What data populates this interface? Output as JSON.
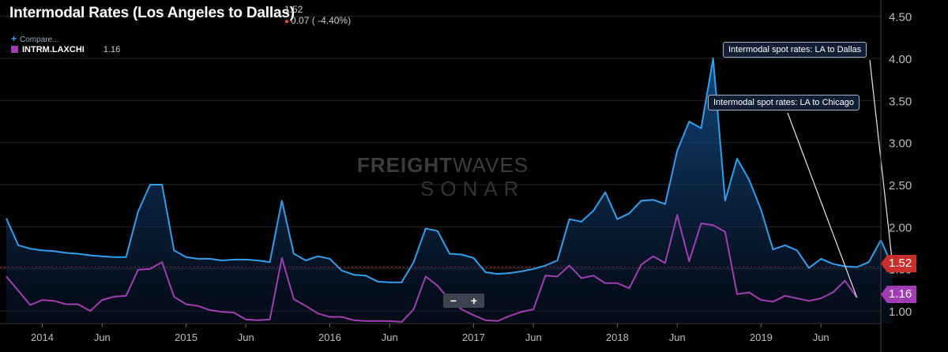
{
  "header": {
    "title": "Intermodal Rates (Los Angeles to Dallas)",
    "last_value": "1.52",
    "change": "0.07 ( -4.40%)",
    "compare_label": "Compare...",
    "series2_label": "INTRM.LAXCHI",
    "series2_value": "1.16"
  },
  "watermark": {
    "brand_bold": "FREIGHT",
    "brand_thin": "WAVES",
    "sub": "SONAR"
  },
  "zoom": {
    "minus": "−",
    "plus": "+"
  },
  "annotations": {
    "dallas": "Intermodal spot rates: LA to Dallas",
    "chicago": "Intermodal spot rates: LA to Chicago"
  },
  "price_tags": {
    "dallas": "1.52",
    "chicago": "1.16"
  },
  "colors": {
    "dallas": "#2f9ff0",
    "chicago": "#a23cb4",
    "last_price": "#c9302c"
  },
  "chart_data": {
    "type": "line",
    "x_start": "2013-10",
    "x_end": "2019-11",
    "x_ticks": [
      {
        "date": "2014-01",
        "label": "2014"
      },
      {
        "date": "2014-06",
        "label": "Jun"
      },
      {
        "date": "2015-01",
        "label": "2015"
      },
      {
        "date": "2015-06",
        "label": "Jun"
      },
      {
        "date": "2016-01",
        "label": "2016"
      },
      {
        "date": "2016-06",
        "label": "Jun"
      },
      {
        "date": "2017-01",
        "label": "2017"
      },
      {
        "date": "2017-06",
        "label": "Jun"
      },
      {
        "date": "2018-01",
        "label": "2018"
      },
      {
        "date": "2018-06",
        "label": "Jun"
      },
      {
        "date": "2019-01",
        "label": "2019"
      },
      {
        "date": "2019-06",
        "label": "Jun"
      }
    ],
    "y_ticks": [
      "1.00",
      "1.50",
      "2.00",
      "2.50",
      "3.00",
      "3.50",
      "4.00",
      "4.50"
    ],
    "ylim": [
      0.85,
      4.6
    ],
    "series": [
      {
        "name": "Intermodal spot rates: LA to Dallas",
        "points": [
          [
            "2013-10",
            2.1
          ],
          [
            "2013-11",
            1.78
          ],
          [
            "2013-12",
            1.74
          ],
          [
            "2014-01",
            1.72
          ],
          [
            "2014-02",
            1.71
          ],
          [
            "2014-03",
            1.69
          ],
          [
            "2014-04",
            1.68
          ],
          [
            "2014-05",
            1.66
          ],
          [
            "2014-06",
            1.65
          ],
          [
            "2014-07",
            1.64
          ],
          [
            "2014-08",
            1.64
          ],
          [
            "2014-09",
            2.18
          ],
          [
            "2014-10",
            2.5
          ],
          [
            "2014-11",
            2.5
          ],
          [
            "2014-12",
            1.72
          ],
          [
            "2015-01",
            1.64
          ],
          [
            "2015-02",
            1.62
          ],
          [
            "2015-03",
            1.62
          ],
          [
            "2015-04",
            1.6
          ],
          [
            "2015-05",
            1.61
          ],
          [
            "2015-06",
            1.61
          ],
          [
            "2015-07",
            1.6
          ],
          [
            "2015-08",
            1.58
          ],
          [
            "2015-09",
            2.31
          ],
          [
            "2015-10",
            1.68
          ],
          [
            "2015-11",
            1.6
          ],
          [
            "2015-12",
            1.65
          ],
          [
            "2016-01",
            1.62
          ],
          [
            "2016-02",
            1.48
          ],
          [
            "2016-03",
            1.43
          ],
          [
            "2016-04",
            1.42
          ],
          [
            "2016-05",
            1.35
          ],
          [
            "2016-06",
            1.34
          ],
          [
            "2016-07",
            1.34
          ],
          [
            "2016-08",
            1.58
          ],
          [
            "2016-09",
            1.98
          ],
          [
            "2016-10",
            1.95
          ],
          [
            "2016-11",
            1.68
          ],
          [
            "2016-12",
            1.67
          ],
          [
            "2017-01",
            1.63
          ],
          [
            "2017-02",
            1.46
          ],
          [
            "2017-03",
            1.44
          ],
          [
            "2017-04",
            1.45
          ],
          [
            "2017-05",
            1.47
          ],
          [
            "2017-06",
            1.5
          ],
          [
            "2017-07",
            1.54
          ],
          [
            "2017-08",
            1.6
          ],
          [
            "2017-09",
            2.09
          ],
          [
            "2017-10",
            2.06
          ],
          [
            "2017-11",
            2.19
          ],
          [
            "2017-12",
            2.41
          ],
          [
            "2018-01",
            2.09
          ],
          [
            "2018-02",
            2.16
          ],
          [
            "2018-03",
            2.31
          ],
          [
            "2018-04",
            2.32
          ],
          [
            "2018-05",
            2.27
          ],
          [
            "2018-06",
            2.9
          ],
          [
            "2018-07",
            3.25
          ],
          [
            "2018-08",
            3.17
          ],
          [
            "2018-09",
            4.0
          ],
          [
            "2018-10",
            2.31
          ],
          [
            "2018-11",
            2.81
          ],
          [
            "2018-12",
            2.56
          ],
          [
            "2019-01",
            2.2
          ],
          [
            "2019-02",
            1.73
          ],
          [
            "2019-03",
            1.78
          ],
          [
            "2019-04",
            1.72
          ],
          [
            "2019-05",
            1.51
          ],
          [
            "2019-06",
            1.62
          ],
          [
            "2019-07",
            1.56
          ],
          [
            "2019-08",
            1.53
          ],
          [
            "2019-09",
            1.52
          ],
          [
            "2019-10",
            1.58
          ],
          [
            "2019-11",
            1.84
          ],
          [
            "2019-12",
            1.52
          ]
        ]
      },
      {
        "name": "Intermodal spot rates: LA to Chicago",
        "points": [
          [
            "2013-10",
            1.41
          ],
          [
            "2013-11",
            1.24
          ],
          [
            "2013-12",
            1.07
          ],
          [
            "2014-01",
            1.13
          ],
          [
            "2014-02",
            1.12
          ],
          [
            "2014-03",
            1.08
          ],
          [
            "2014-04",
            1.08
          ],
          [
            "2014-05",
            1.0
          ],
          [
            "2014-06",
            1.13
          ],
          [
            "2014-07",
            1.17
          ],
          [
            "2014-08",
            1.18
          ],
          [
            "2014-09",
            1.49
          ],
          [
            "2014-10",
            1.5
          ],
          [
            "2014-11",
            1.58
          ],
          [
            "2014-12",
            1.17
          ],
          [
            "2015-01",
            1.08
          ],
          [
            "2015-02",
            1.06
          ],
          [
            "2015-03",
            1.01
          ],
          [
            "2015-04",
            0.99
          ],
          [
            "2015-05",
            0.98
          ],
          [
            "2015-06",
            0.9
          ],
          [
            "2015-07",
            0.89
          ],
          [
            "2015-08",
            0.9
          ],
          [
            "2015-09",
            1.63
          ],
          [
            "2015-10",
            1.14
          ],
          [
            "2015-11",
            1.06
          ],
          [
            "2015-12",
            0.97
          ],
          [
            "2016-01",
            0.93
          ],
          [
            "2016-02",
            0.93
          ],
          [
            "2016-03",
            0.89
          ],
          [
            "2016-04",
            0.88
          ],
          [
            "2016-05",
            0.88
          ],
          [
            "2016-06",
            0.88
          ],
          [
            "2016-07",
            0.87
          ],
          [
            "2016-08",
            1.02
          ],
          [
            "2016-09",
            1.41
          ],
          [
            "2016-10",
            1.3
          ],
          [
            "2016-11",
            1.13
          ],
          [
            "2016-12",
            1.02
          ],
          [
            "2017-01",
            0.95
          ],
          [
            "2017-02",
            0.89
          ],
          [
            "2017-03",
            0.88
          ],
          [
            "2017-04",
            0.94
          ],
          [
            "2017-05",
            0.99
          ],
          [
            "2017-06",
            1.02
          ],
          [
            "2017-07",
            1.42
          ],
          [
            "2017-08",
            1.41
          ],
          [
            "2017-09",
            1.54
          ],
          [
            "2017-10",
            1.39
          ],
          [
            "2017-11",
            1.42
          ],
          [
            "2017-12",
            1.33
          ],
          [
            "2018-01",
            1.33
          ],
          [
            "2018-02",
            1.27
          ],
          [
            "2018-03",
            1.55
          ],
          [
            "2018-04",
            1.65
          ],
          [
            "2018-05",
            1.57
          ],
          [
            "2018-06",
            2.14
          ],
          [
            "2018-07",
            1.59
          ],
          [
            "2018-08",
            2.04
          ],
          [
            "2018-09",
            2.02
          ],
          [
            "2018-10",
            1.94
          ],
          [
            "2018-11",
            1.2
          ],
          [
            "2018-12",
            1.22
          ],
          [
            "2019-01",
            1.13
          ],
          [
            "2019-02",
            1.11
          ],
          [
            "2019-03",
            1.18
          ],
          [
            "2019-04",
            1.15
          ],
          [
            "2019-05",
            1.12
          ],
          [
            "2019-06",
            1.15
          ],
          [
            "2019-07",
            1.22
          ],
          [
            "2019-08",
            1.36
          ],
          [
            "2019-09",
            1.16
          ]
        ]
      }
    ],
    "grid": true,
    "legend": "top-left"
  }
}
